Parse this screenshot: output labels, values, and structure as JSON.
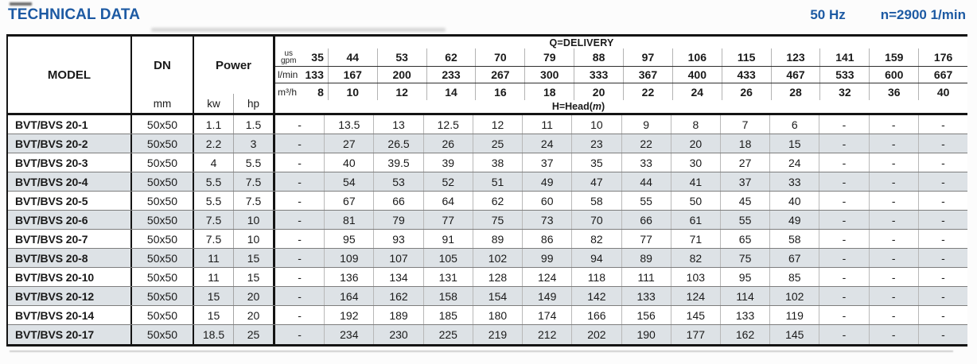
{
  "page": {
    "title": "TECHNICAL DATA",
    "frequency": "50 Hz",
    "speed": "n=2900 1/min"
  },
  "colors": {
    "accent_blue": "#1d5aa3",
    "row_stripe": "#dde2e6"
  },
  "table": {
    "header": {
      "model": "MODEL",
      "dn": "DN",
      "dn_unit": "mm",
      "power": "Power",
      "power_units": [
        "kw",
        "hp"
      ],
      "delivery_label": "Q=DELIVERY",
      "head_label": {
        "prefix": "H=Head(",
        "m": "m",
        "suffix": ")"
      },
      "flow_rows": [
        {
          "unit": "us gpm",
          "unit_lines": [
            "us",
            "gpm"
          ],
          "values": [
            "35",
            "44",
            "53",
            "62",
            "70",
            "79",
            "88",
            "97",
            "106",
            "115",
            "123",
            "141",
            "159",
            "176"
          ]
        },
        {
          "unit": "l/min",
          "values": [
            "133",
            "167",
            "200",
            "233",
            "267",
            "300",
            "333",
            "367",
            "400",
            "433",
            "467",
            "533",
            "600",
            "667"
          ]
        },
        {
          "unit": "m³/h",
          "values": [
            "8",
            "10",
            "12",
            "14",
            "16",
            "18",
            "20",
            "22",
            "24",
            "26",
            "28",
            "32",
            "36",
            "40"
          ]
        }
      ]
    },
    "rows": [
      {
        "model": "BVT/BVS 20-1",
        "dn": "50x50",
        "kw": "1.1",
        "hp": "1.5",
        "head": [
          "-",
          "13.5",
          "13",
          "12.5",
          "12",
          "11",
          "10",
          "9",
          "8",
          "7",
          "6",
          "-",
          "-",
          "-"
        ]
      },
      {
        "model": "BVT/BVS 20-2",
        "dn": "50x50",
        "kw": "2.2",
        "hp": "3",
        "head": [
          "-",
          "27",
          "26.5",
          "26",
          "25",
          "24",
          "23",
          "22",
          "20",
          "18",
          "15",
          "-",
          "-",
          "-"
        ]
      },
      {
        "model": "BVT/BVS 20-3",
        "dn": "50x50",
        "kw": "4",
        "hp": "5.5",
        "head": [
          "-",
          "40",
          "39.5",
          "39",
          "38",
          "37",
          "35",
          "33",
          "30",
          "27",
          "24",
          "-",
          "-",
          "-"
        ]
      },
      {
        "model": "BVT/BVS 20-4",
        "dn": "50x50",
        "kw": "5.5",
        "hp": "7.5",
        "head": [
          "-",
          "54",
          "53",
          "52",
          "51",
          "49",
          "47",
          "44",
          "41",
          "37",
          "33",
          "-",
          "-",
          "-"
        ]
      },
      {
        "model": "BVT/BVS 20-5",
        "dn": "50x50",
        "kw": "5.5",
        "hp": "7.5",
        "head": [
          "-",
          "67",
          "66",
          "64",
          "62",
          "60",
          "58",
          "55",
          "50",
          "45",
          "40",
          "-",
          "-",
          "-"
        ]
      },
      {
        "model": "BVT/BVS 20-6",
        "dn": "50x50",
        "kw": "7.5",
        "hp": "10",
        "head": [
          "-",
          "81",
          "79",
          "77",
          "75",
          "73",
          "70",
          "66",
          "61",
          "55",
          "49",
          "-",
          "-",
          "-"
        ]
      },
      {
        "model": "BVT/BVS 20-7",
        "dn": "50x50",
        "kw": "7.5",
        "hp": "10",
        "head": [
          "-",
          "95",
          "93",
          "91",
          "89",
          "86",
          "82",
          "77",
          "71",
          "65",
          "58",
          "-",
          "-",
          "-"
        ]
      },
      {
        "model": "BVT/BVS 20-8",
        "dn": "50x50",
        "kw": "11",
        "hp": "15",
        "head": [
          "-",
          "109",
          "107",
          "105",
          "102",
          "99",
          "94",
          "89",
          "82",
          "75",
          "67",
          "-",
          "-",
          "-"
        ]
      },
      {
        "model": "BVT/BVS 20-10",
        "dn": "50x50",
        "kw": "11",
        "hp": "15",
        "head": [
          "-",
          "136",
          "134",
          "131",
          "128",
          "124",
          "118",
          "111",
          "103",
          "95",
          "85",
          "-",
          "-",
          "-"
        ]
      },
      {
        "model": "BVT/BVS 20-12",
        "dn": "50x50",
        "kw": "15",
        "hp": "20",
        "head": [
          "-",
          "164",
          "162",
          "158",
          "154",
          "149",
          "142",
          "133",
          "124",
          "114",
          "102",
          "-",
          "-",
          "-"
        ]
      },
      {
        "model": "BVT/BVS 20-14",
        "dn": "50x50",
        "kw": "15",
        "hp": "20",
        "head": [
          "-",
          "192",
          "189",
          "185",
          "180",
          "174",
          "166",
          "156",
          "145",
          "133",
          "119",
          "-",
          "-",
          "-"
        ]
      },
      {
        "model": "BVT/BVS 20-17",
        "dn": "50x50",
        "kw": "18.5",
        "hp": "25",
        "head": [
          "-",
          "234",
          "230",
          "225",
          "219",
          "212",
          "202",
          "190",
          "177",
          "162",
          "145",
          "-",
          "-",
          "-"
        ]
      }
    ]
  }
}
